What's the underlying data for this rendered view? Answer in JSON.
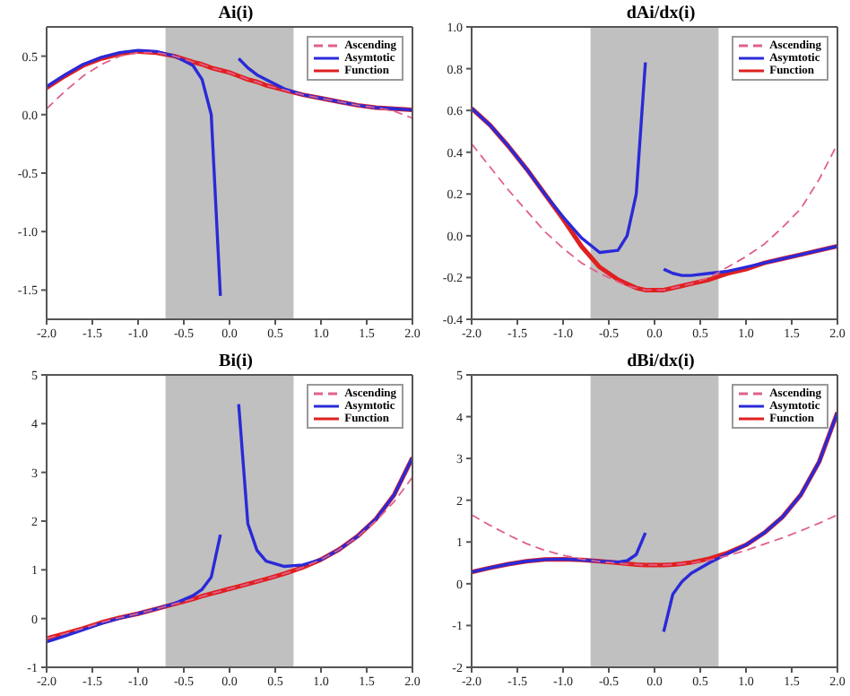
{
  "chart_data": [
    {
      "type": "line",
      "title": "Ai(i)",
      "x": [
        -2,
        -1.8,
        -1.6,
        -1.4,
        -1.2,
        -1,
        -0.8,
        -0.6,
        -0.4,
        -0.3,
        -0.2,
        -0.1,
        0,
        0.1,
        0.2,
        0.3,
        0.4,
        0.6,
        0.8,
        1,
        1.2,
        1.4,
        1.6,
        1.8,
        2
      ],
      "series": [
        {
          "name": "Ascending",
          "color": "#e0608a",
          "line_style": "dashed",
          "values": [
            0.05,
            0.2,
            0.33,
            0.43,
            0.5,
            0.53,
            0.53,
            0.5,
            0.45,
            0.43,
            0.4,
            0.38,
            0.36,
            0.33,
            0.3,
            0.28,
            0.25,
            0.21,
            0.17,
            0.14,
            0.11,
            0.08,
            0.06,
            0.03,
            -0.03
          ]
        },
        {
          "name": "Asymtotic",
          "color": "#2a2ad8",
          "line_style": "solid",
          "values": [
            0.24,
            0.34,
            0.43,
            0.49,
            0.53,
            0.55,
            0.54,
            0.5,
            0.42,
            0.3,
            0.0,
            -1.55,
            null,
            0.48,
            0.4,
            0.34,
            0.3,
            0.22,
            0.17,
            0.14,
            0.11,
            0.08,
            0.06,
            0.05,
            0.04
          ]
        },
        {
          "name": "Function",
          "color": "#e02020",
          "line_style": "solid",
          "values": [
            0.23,
            0.33,
            0.42,
            0.48,
            0.52,
            0.54,
            0.53,
            0.5,
            0.45,
            0.43,
            0.4,
            0.38,
            0.36,
            0.33,
            0.3,
            0.28,
            0.25,
            0.21,
            0.17,
            0.14,
            0.11,
            0.08,
            0.06,
            0.05,
            0.04
          ]
        }
      ],
      "bands": [
        {
          "axis": "x",
          "from": -0.7,
          "to": 0.7,
          "color": "#c0c0c0"
        }
      ],
      "xlim": [
        -2,
        2
      ],
      "xticks": [
        {
          "value": -2,
          "label": "-2.0"
        },
        {
          "value": -1.5,
          "label": "-1.5"
        },
        {
          "value": -1,
          "label": "-1.0"
        },
        {
          "value": -0.5,
          "label": "-0.5"
        },
        {
          "value": 0,
          "label": "0.0"
        },
        {
          "value": 0.5,
          "label": "0.5"
        },
        {
          "value": 1,
          "label": "1.0"
        },
        {
          "value": 1.5,
          "label": "1.5"
        },
        {
          "value": 2,
          "label": "2.0"
        }
      ],
      "ylim": [
        -1.75,
        0.75
      ],
      "yticks": [
        {
          "value": -1.5,
          "label": "-1.5"
        },
        {
          "value": -1,
          "label": "-1.0"
        },
        {
          "value": -0.5,
          "label": "-0.5"
        },
        {
          "value": 0,
          "label": "0.0"
        },
        {
          "value": 0.5,
          "label": "0.5"
        }
      ],
      "legend": "top right",
      "grid": false
    },
    {
      "type": "line",
      "title": "dAi/dx(i)",
      "x": [
        -2,
        -1.8,
        -1.6,
        -1.4,
        -1.2,
        -1,
        -0.8,
        -0.6,
        -0.4,
        -0.3,
        -0.2,
        -0.1,
        0,
        0.1,
        0.2,
        0.3,
        0.4,
        0.6,
        0.8,
        1,
        1.2,
        1.4,
        1.6,
        1.8,
        2
      ],
      "series": [
        {
          "name": "Ascending",
          "color": "#e0608a",
          "line_style": "dashed",
          "values": [
            0.44,
            0.33,
            0.22,
            0.12,
            0.02,
            -0.06,
            -0.13,
            -0.18,
            -0.22,
            -0.24,
            -0.25,
            -0.26,
            -0.26,
            -0.26,
            -0.25,
            -0.24,
            -0.23,
            -0.2,
            -0.15,
            -0.1,
            -0.04,
            0.04,
            0.13,
            0.27,
            0.44
          ]
        },
        {
          "name": "Asymtotic",
          "color": "#2a2ad8",
          "line_style": "solid",
          "values": [
            0.61,
            0.53,
            0.43,
            0.32,
            0.2,
            0.09,
            -0.01,
            -0.08,
            -0.07,
            0.0,
            0.2,
            0.83,
            null,
            -0.16,
            -0.18,
            -0.19,
            -0.19,
            -0.18,
            -0.17,
            -0.15,
            -0.13,
            -0.11,
            -0.09,
            -0.07,
            -0.05
          ]
        },
        {
          "name": "Function",
          "color": "#e02020",
          "line_style": "solid",
          "values": [
            0.61,
            0.53,
            0.43,
            0.32,
            0.2,
            0.08,
            -0.05,
            -0.15,
            -0.21,
            -0.23,
            -0.25,
            -0.26,
            -0.26,
            -0.26,
            -0.25,
            -0.24,
            -0.23,
            -0.21,
            -0.18,
            -0.16,
            -0.13,
            -0.11,
            -0.09,
            -0.07,
            -0.05
          ]
        }
      ],
      "bands": [
        {
          "axis": "x",
          "from": -0.7,
          "to": 0.7,
          "color": "#c0c0c0"
        }
      ],
      "xlim": [
        -2,
        2
      ],
      "xticks": [
        {
          "value": -2,
          "label": "-2.0"
        },
        {
          "value": -1.5,
          "label": "-1.5"
        },
        {
          "value": -1,
          "label": "-1.0"
        },
        {
          "value": -0.5,
          "label": "-0.5"
        },
        {
          "value": 0,
          "label": "0.0"
        },
        {
          "value": 0.5,
          "label": "0.5"
        },
        {
          "value": 1,
          "label": "1.0"
        },
        {
          "value": 1.5,
          "label": "1.5"
        },
        {
          "value": 2,
          "label": "2.0"
        }
      ],
      "ylim": [
        -0.4,
        1
      ],
      "yticks": [
        {
          "value": -0.4,
          "label": "-0.4"
        },
        {
          "value": -0.2,
          "label": "-0.2"
        },
        {
          "value": 0,
          "label": "0.0"
        },
        {
          "value": 0.2,
          "label": "0.2"
        },
        {
          "value": 0.4,
          "label": "0.4"
        },
        {
          "value": 0.6,
          "label": "0.6"
        },
        {
          "value": 0.8,
          "label": "0.8"
        },
        {
          "value": 1,
          "label": "1.0"
        }
      ],
      "legend": "top right",
      "grid": false
    },
    {
      "type": "line",
      "title": "Bi(i)",
      "x": [
        -2,
        -1.8,
        -1.6,
        -1.4,
        -1.2,
        -1,
        -0.8,
        -0.6,
        -0.4,
        -0.3,
        -0.2,
        -0.1,
        0,
        0.1,
        0.2,
        0.3,
        0.4,
        0.6,
        0.8,
        1,
        1.2,
        1.4,
        1.6,
        1.8,
        2
      ],
      "series": [
        {
          "name": "Ascending",
          "color": "#e0608a",
          "line_style": "dashed",
          "values": [
            -0.41,
            -0.31,
            -0.2,
            -0.08,
            0.02,
            0.1,
            0.2,
            0.3,
            0.4,
            0.46,
            0.51,
            0.56,
            0.61,
            0.66,
            0.71,
            0.76,
            0.81,
            0.92,
            1.05,
            1.21,
            1.42,
            1.68,
            2.0,
            2.4,
            2.9
          ]
        },
        {
          "name": "Asymtotic",
          "color": "#2a2ad8",
          "line_style": "solid",
          "values": [
            -0.48,
            -0.36,
            -0.23,
            -0.1,
            0.01,
            0.1,
            0.2,
            0.31,
            0.47,
            0.6,
            0.85,
            1.72,
            null,
            4.4,
            1.95,
            1.4,
            1.18,
            1.07,
            1.1,
            1.21,
            1.42,
            1.69,
            2.04,
            2.54,
            3.3
          ]
        },
        {
          "name": "Function",
          "color": "#e02020",
          "line_style": "solid",
          "values": [
            -0.41,
            -0.31,
            -0.2,
            -0.08,
            0.02,
            0.1,
            0.2,
            0.3,
            0.4,
            0.46,
            0.51,
            0.56,
            0.61,
            0.66,
            0.71,
            0.76,
            0.81,
            0.92,
            1.05,
            1.21,
            1.42,
            1.69,
            2.04,
            2.54,
            3.3
          ]
        }
      ],
      "bands": [
        {
          "axis": "x",
          "from": -0.7,
          "to": 0.7,
          "color": "#c0c0c0"
        }
      ],
      "xlim": [
        -2,
        2
      ],
      "xticks": [
        {
          "value": -2,
          "label": "-2.0"
        },
        {
          "value": -1.5,
          "label": "-1.5"
        },
        {
          "value": -1,
          "label": "-1.0"
        },
        {
          "value": -0.5,
          "label": "-0.5"
        },
        {
          "value": 0,
          "label": "0.0"
        },
        {
          "value": 0.5,
          "label": "0.5"
        },
        {
          "value": 1,
          "label": "1.0"
        },
        {
          "value": 1.5,
          "label": "1.5"
        },
        {
          "value": 2,
          "label": "2.0"
        }
      ],
      "ylim": [
        -1,
        5
      ],
      "yticks": [
        -1,
        0,
        1,
        2,
        3,
        4,
        5
      ],
      "legend": "top right",
      "grid": false
    },
    {
      "type": "line",
      "title": "dBi/dx(i)",
      "x": [
        -2,
        -1.8,
        -1.6,
        -1.4,
        -1.2,
        -1,
        -0.8,
        -0.6,
        -0.4,
        -0.3,
        -0.2,
        -0.1,
        0,
        0.1,
        0.2,
        0.3,
        0.4,
        0.6,
        0.8,
        1,
        1.2,
        1.4,
        1.6,
        1.8,
        2
      ],
      "series": [
        {
          "name": "Ascending",
          "color": "#e0608a",
          "line_style": "dashed",
          "values": [
            1.65,
            1.4,
            1.17,
            0.96,
            0.8,
            0.68,
            0.59,
            0.53,
            0.49,
            0.47,
            0.46,
            0.45,
            0.45,
            0.45,
            0.46,
            0.48,
            0.5,
            0.57,
            0.67,
            0.8,
            0.95,
            1.1,
            1.27,
            1.45,
            1.65
          ]
        },
        {
          "name": "Asymtotic",
          "color": "#2a2ad8",
          "line_style": "solid",
          "values": [
            0.28,
            0.38,
            0.47,
            0.54,
            0.58,
            0.59,
            0.57,
            0.54,
            0.52,
            0.55,
            0.7,
            1.22,
            null,
            -1.15,
            -0.25,
            0.05,
            0.25,
            0.5,
            0.72,
            0.93,
            1.22,
            1.6,
            2.13,
            2.92,
            4.1
          ]
        },
        {
          "name": "Function",
          "color": "#e02020",
          "line_style": "solid",
          "values": [
            0.28,
            0.38,
            0.47,
            0.54,
            0.58,
            0.59,
            0.57,
            0.54,
            0.5,
            0.48,
            0.46,
            0.45,
            0.45,
            0.45,
            0.46,
            0.48,
            0.51,
            0.6,
            0.74,
            0.93,
            1.22,
            1.6,
            2.13,
            2.92,
            4.1
          ]
        }
      ],
      "bands": [
        {
          "axis": "x",
          "from": -0.7,
          "to": 0.7,
          "color": "#c0c0c0"
        }
      ],
      "xlim": [
        -2,
        2
      ],
      "xticks": [
        {
          "value": -2,
          "label": "-2.0"
        },
        {
          "value": -1.5,
          "label": "-1.5"
        },
        {
          "value": -1,
          "label": "-1.0"
        },
        {
          "value": -0.5,
          "label": "-0.5"
        },
        {
          "value": 0,
          "label": "0.0"
        },
        {
          "value": 0.5,
          "label": "0.5"
        },
        {
          "value": 1,
          "label": "1.0"
        },
        {
          "value": 1.5,
          "label": "1.5"
        },
        {
          "value": 2,
          "label": "2.0"
        }
      ],
      "ylim": [
        -2,
        5
      ],
      "yticks": [
        -2,
        -1,
        0,
        1,
        2,
        3,
        4,
        5
      ],
      "legend": "top right",
      "grid": false
    }
  ]
}
